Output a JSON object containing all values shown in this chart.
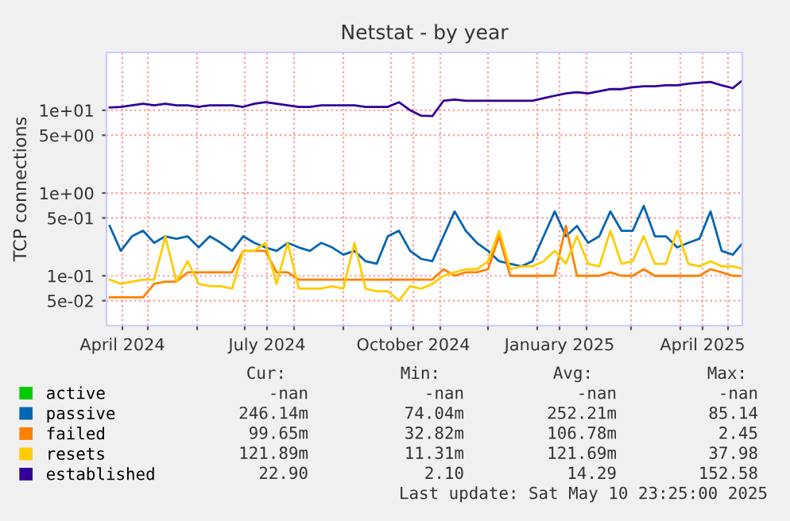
{
  "chart_data": {
    "type": "line",
    "title": "Netstat - by year",
    "ylabel": "TCP connections",
    "x": [
      "2024-04-07",
      "2024-04-14",
      "2024-04-21",
      "2024-04-28",
      "2024-05-05",
      "2024-05-12",
      "2024-05-19",
      "2024-05-26",
      "2024-06-02",
      "2024-06-09",
      "2024-06-16",
      "2024-06-23",
      "2024-06-30",
      "2024-07-07",
      "2024-07-14",
      "2024-07-21",
      "2024-07-28",
      "2024-08-04",
      "2024-08-11",
      "2024-08-18",
      "2024-08-25",
      "2024-09-01",
      "2024-09-08",
      "2024-09-15",
      "2024-09-22",
      "2024-09-29",
      "2024-10-06",
      "2024-10-13",
      "2024-10-20",
      "2024-10-27",
      "2024-11-03",
      "2024-11-10",
      "2024-11-17",
      "2024-11-24",
      "2024-12-01",
      "2024-12-08",
      "2024-12-15",
      "2024-12-22",
      "2024-12-29",
      "2025-01-05",
      "2025-01-12",
      "2025-01-19",
      "2025-01-26",
      "2025-02-02",
      "2025-02-09",
      "2025-02-16",
      "2025-02-23",
      "2025-03-02",
      "2025-03-09",
      "2025-03-16",
      "2025-03-23",
      "2025-03-30",
      "2025-04-06",
      "2025-04-13",
      "2025-04-20",
      "2025-04-27",
      "2025-05-04",
      "2025-05-10"
    ],
    "series": [
      {
        "name": "active",
        "color": "#00cc00",
        "values": [
          null,
          null,
          null,
          null,
          null,
          null,
          null,
          null,
          null,
          null,
          null,
          null,
          null,
          null,
          null,
          null,
          null,
          null,
          null,
          null,
          null,
          null,
          null,
          null,
          null,
          null,
          null,
          null,
          null,
          null,
          null,
          null,
          null,
          null,
          null,
          null,
          null,
          null,
          null,
          null,
          null,
          null,
          null,
          null,
          null,
          null,
          null,
          null,
          null,
          null,
          null,
          null,
          null,
          null,
          null,
          null,
          null,
          null
        ]
      },
      {
        "name": "passive",
        "color": "#0066b3",
        "values": [
          0.4,
          0.2,
          0.3,
          0.35,
          0.25,
          0.3,
          0.28,
          0.3,
          0.22,
          0.3,
          0.25,
          0.2,
          0.3,
          0.25,
          0.22,
          0.2,
          0.25,
          0.22,
          0.2,
          0.25,
          0.22,
          0.18,
          0.2,
          0.15,
          0.14,
          0.3,
          0.35,
          0.2,
          0.16,
          0.15,
          0.3,
          0.6,
          0.35,
          0.25,
          0.2,
          0.15,
          0.14,
          0.13,
          0.15,
          0.3,
          0.6,
          0.3,
          0.4,
          0.25,
          0.3,
          0.6,
          0.35,
          0.35,
          0.7,
          0.3,
          0.3,
          0.22,
          0.25,
          0.28,
          0.6,
          0.2,
          0.18,
          0.246
        ]
      },
      {
        "name": "failed",
        "color": "#ff8000",
        "values": [
          0.055,
          0.055,
          0.055,
          0.055,
          0.08,
          0.085,
          0.085,
          0.11,
          0.11,
          0.11,
          0.11,
          0.11,
          0.2,
          0.2,
          0.2,
          0.11,
          0.11,
          0.09,
          0.09,
          0.09,
          0.09,
          0.09,
          0.09,
          0.09,
          0.09,
          0.09,
          0.09,
          0.09,
          0.09,
          0.09,
          0.12,
          0.1,
          0.11,
          0.11,
          0.12,
          0.3,
          0.1,
          0.1,
          0.1,
          0.1,
          0.1,
          0.4,
          0.1,
          0.1,
          0.1,
          0.11,
          0.1,
          0.1,
          0.12,
          0.1,
          0.1,
          0.1,
          0.1,
          0.1,
          0.12,
          0.11,
          0.1,
          0.0997
        ]
      },
      {
        "name": "resets",
        "color": "#ffcc00",
        "values": [
          0.09,
          0.08,
          0.085,
          0.09,
          0.09,
          0.3,
          0.085,
          0.15,
          0.08,
          0.075,
          0.075,
          0.07,
          0.2,
          0.2,
          0.25,
          0.08,
          0.25,
          0.07,
          0.07,
          0.07,
          0.075,
          0.07,
          0.25,
          0.07,
          0.065,
          0.065,
          0.05,
          0.075,
          0.07,
          0.08,
          0.1,
          0.11,
          0.12,
          0.12,
          0.15,
          0.35,
          0.12,
          0.13,
          0.13,
          0.15,
          0.2,
          0.14,
          0.3,
          0.14,
          0.13,
          0.35,
          0.14,
          0.15,
          0.3,
          0.14,
          0.14,
          0.35,
          0.14,
          0.13,
          0.15,
          0.13,
          0.13,
          0.122
        ]
      },
      {
        "name": "established",
        "color": "#330099",
        "values": [
          10.8,
          11,
          11.5,
          12,
          11.5,
          12,
          11.5,
          11.5,
          11,
          11.5,
          11.5,
          11.5,
          11,
          12,
          12.5,
          12,
          11.5,
          11,
          11,
          11.5,
          11.5,
          11.5,
          11.5,
          11,
          11,
          11,
          12.5,
          10,
          8.6,
          8.5,
          13,
          13.5,
          13,
          13,
          13,
          13,
          13,
          13,
          13,
          14,
          15,
          16,
          16.5,
          16,
          17,
          18,
          18,
          19,
          19.5,
          19.5,
          20,
          20,
          21,
          21.5,
          22,
          20,
          18.5,
          22.9
        ]
      }
    ],
    "log": "y",
    "ylim": [
      0.025,
      50
    ],
    "yticks": [
      {
        "value": 0.05,
        "label": "5e-02"
      },
      {
        "value": 0.1,
        "label": "1e-01"
      },
      {
        "value": 0.5,
        "label": "5e-01"
      },
      {
        "value": 1,
        "label": "1e+00"
      },
      {
        "value": 5,
        "label": "5e+00"
      },
      {
        "value": 10,
        "label": "1e+01"
      }
    ],
    "xlim": [
      "2024-04-05",
      "2025-05-10"
    ],
    "xticks": [
      {
        "value": "2024-04-15",
        "label": "April 2024"
      },
      {
        "value": "2024-05-01",
        "label": null
      },
      {
        "value": "2024-06-01",
        "label": null
      },
      {
        "value": "2024-07-01",
        "label": null
      },
      {
        "value": "2024-07-15",
        "label": "July 2024"
      },
      {
        "value": "2024-08-01",
        "label": null
      },
      {
        "value": "2024-09-01",
        "label": null
      },
      {
        "value": "2024-10-01",
        "label": null
      },
      {
        "value": "2024-10-15",
        "label": "October 2024"
      },
      {
        "value": "2024-11-01",
        "label": null
      },
      {
        "value": "2024-12-01",
        "label": null
      },
      {
        "value": "2025-01-01",
        "label": null
      },
      {
        "value": "2025-01-15",
        "label": "January 2025"
      },
      {
        "value": "2025-02-01",
        "label": null
      },
      {
        "value": "2025-03-01",
        "label": null
      },
      {
        "value": "2025-04-01",
        "label": null
      },
      {
        "value": "2025-04-15",
        "label": "April 2025"
      },
      {
        "value": "2025-05-01",
        "label": null
      }
    ],
    "grid": true,
    "legend": "bottom left",
    "marker": "none",
    "line_style": "solid",
    "annotations": [
      "Cur:",
      "Min:",
      "Avg:",
      "Max:",
      "-nan",
      "-nan",
      "-nan",
      "-nan",
      "246.14m",
      "74.04m",
      "252.21m",
      "85.14",
      "99.65m",
      "32.82m",
      "106.78m",
      "2.45",
      "121.89m",
      "11.31m",
      "121.69m",
      "37.98",
      "22.90",
      "2.10",
      "14.29",
      "152.58",
      "Last update: Sat May 10 23:25:00 2025"
    ]
  }
}
